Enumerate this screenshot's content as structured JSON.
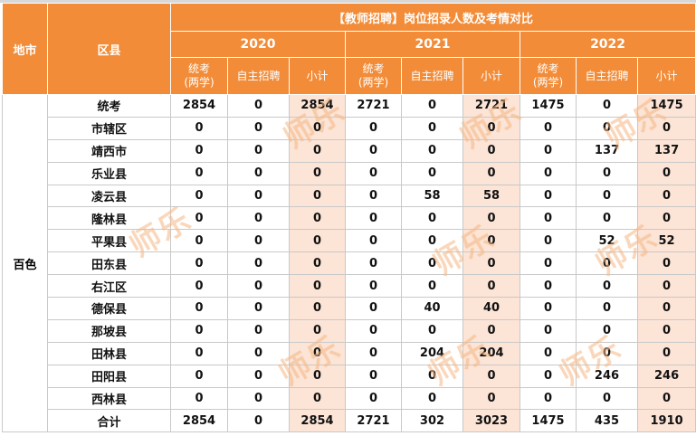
{
  "table": {
    "title": "【教师招聘】岗位招录人数及考情对比",
    "col_city": "地市",
    "col_district": "区县",
    "years": [
      "2020",
      "2021",
      "2022"
    ],
    "sub_headers": [
      "统考\n(两学)",
      "自主招聘",
      "小计"
    ],
    "region": "百色",
    "rows": [
      {
        "name": "统考",
        "values": [
          "2854",
          "0",
          "2854",
          "2721",
          "0",
          "2721",
          "1475",
          "0",
          "1475"
        ]
      },
      {
        "name": "市辖区",
        "values": [
          "0",
          "0",
          "0",
          "0",
          "0",
          "0",
          "0",
          "0",
          "0"
        ]
      },
      {
        "name": "靖西市",
        "values": [
          "0",
          "0",
          "0",
          "0",
          "0",
          "0",
          "0",
          "137",
          "137"
        ]
      },
      {
        "name": "乐业县",
        "values": [
          "0",
          "0",
          "0",
          "0",
          "0",
          "0",
          "0",
          "0",
          "0"
        ]
      },
      {
        "name": "凌云县",
        "values": [
          "0",
          "0",
          "0",
          "0",
          "58",
          "58",
          "0",
          "0",
          "0"
        ]
      },
      {
        "name": "隆林县",
        "values": [
          "0",
          "0",
          "0",
          "0",
          "0",
          "0",
          "0",
          "0",
          "0"
        ]
      },
      {
        "name": "平果县",
        "values": [
          "0",
          "0",
          "0",
          "0",
          "0",
          "0",
          "0",
          "52",
          "52"
        ]
      },
      {
        "name": "田东县",
        "values": [
          "0",
          "0",
          "0",
          "0",
          "0",
          "0",
          "0",
          "0",
          "0"
        ]
      },
      {
        "name": "右江区",
        "values": [
          "0",
          "0",
          "0",
          "0",
          "0",
          "0",
          "0",
          "0",
          "0"
        ]
      },
      {
        "name": "德保县",
        "values": [
          "0",
          "0",
          "0",
          "0",
          "40",
          "40",
          "0",
          "0",
          "0"
        ]
      },
      {
        "name": "那坡县",
        "values": [
          "0",
          "0",
          "0",
          "0",
          "0",
          "0",
          "0",
          "0",
          "0"
        ]
      },
      {
        "name": "田林县",
        "values": [
          "0",
          "0",
          "0",
          "0",
          "204",
          "204",
          "0",
          "0",
          "0"
        ]
      },
      {
        "name": "田阳县",
        "values": [
          "0",
          "0",
          "0",
          "0",
          "0",
          "0",
          "0",
          "246",
          "246"
        ]
      },
      {
        "name": "西林县",
        "values": [
          "0",
          "0",
          "0",
          "0",
          "0",
          "0",
          "0",
          "0",
          "0"
        ]
      },
      {
        "name": "合计",
        "values": [
          "2854",
          "0",
          "2854",
          "2721",
          "302",
          "3023",
          "1475",
          "435",
          "1910"
        ]
      }
    ]
  },
  "watermark": "师乐",
  "colors": {
    "header_bg": "#f28c38",
    "subtotal_bg": "#fce4d6",
    "watermark": "#f6b884"
  }
}
